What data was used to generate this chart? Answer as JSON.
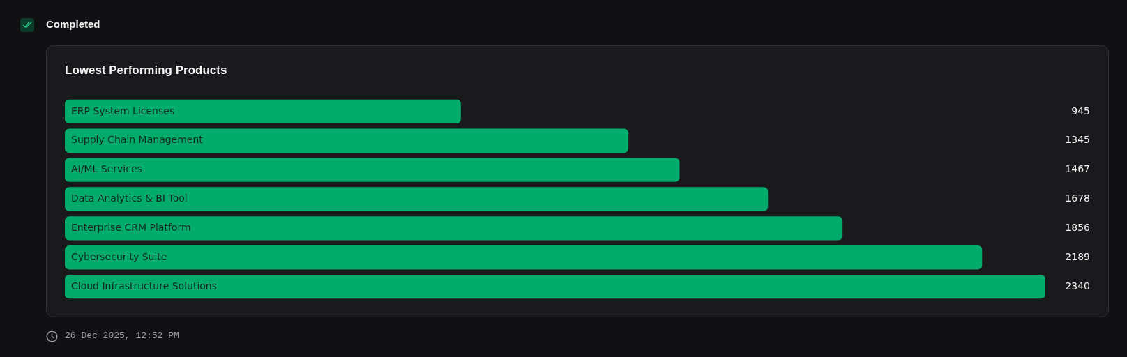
{
  "chart_data": {
    "type": "bar",
    "orientation": "horizontal",
    "title": "Lowest Performing Products",
    "categories": [
      "ERP System Licenses",
      "Supply Chain Management",
      "AI/ML Services",
      "Data Analytics & BI Tool",
      "Enterprise CRM Platform",
      "Cybersecurity Suite",
      "Cloud Infrastructure Solutions"
    ],
    "values": [
      945,
      1345,
      1467,
      1678,
      1856,
      2189,
      2340
    ],
    "color": "#00ab6c",
    "data_labels": true,
    "tick_labels": "y",
    "annotations": [
      "Completed",
      "26 Dec 2025, 12:52 PM"
    ]
  }
}
